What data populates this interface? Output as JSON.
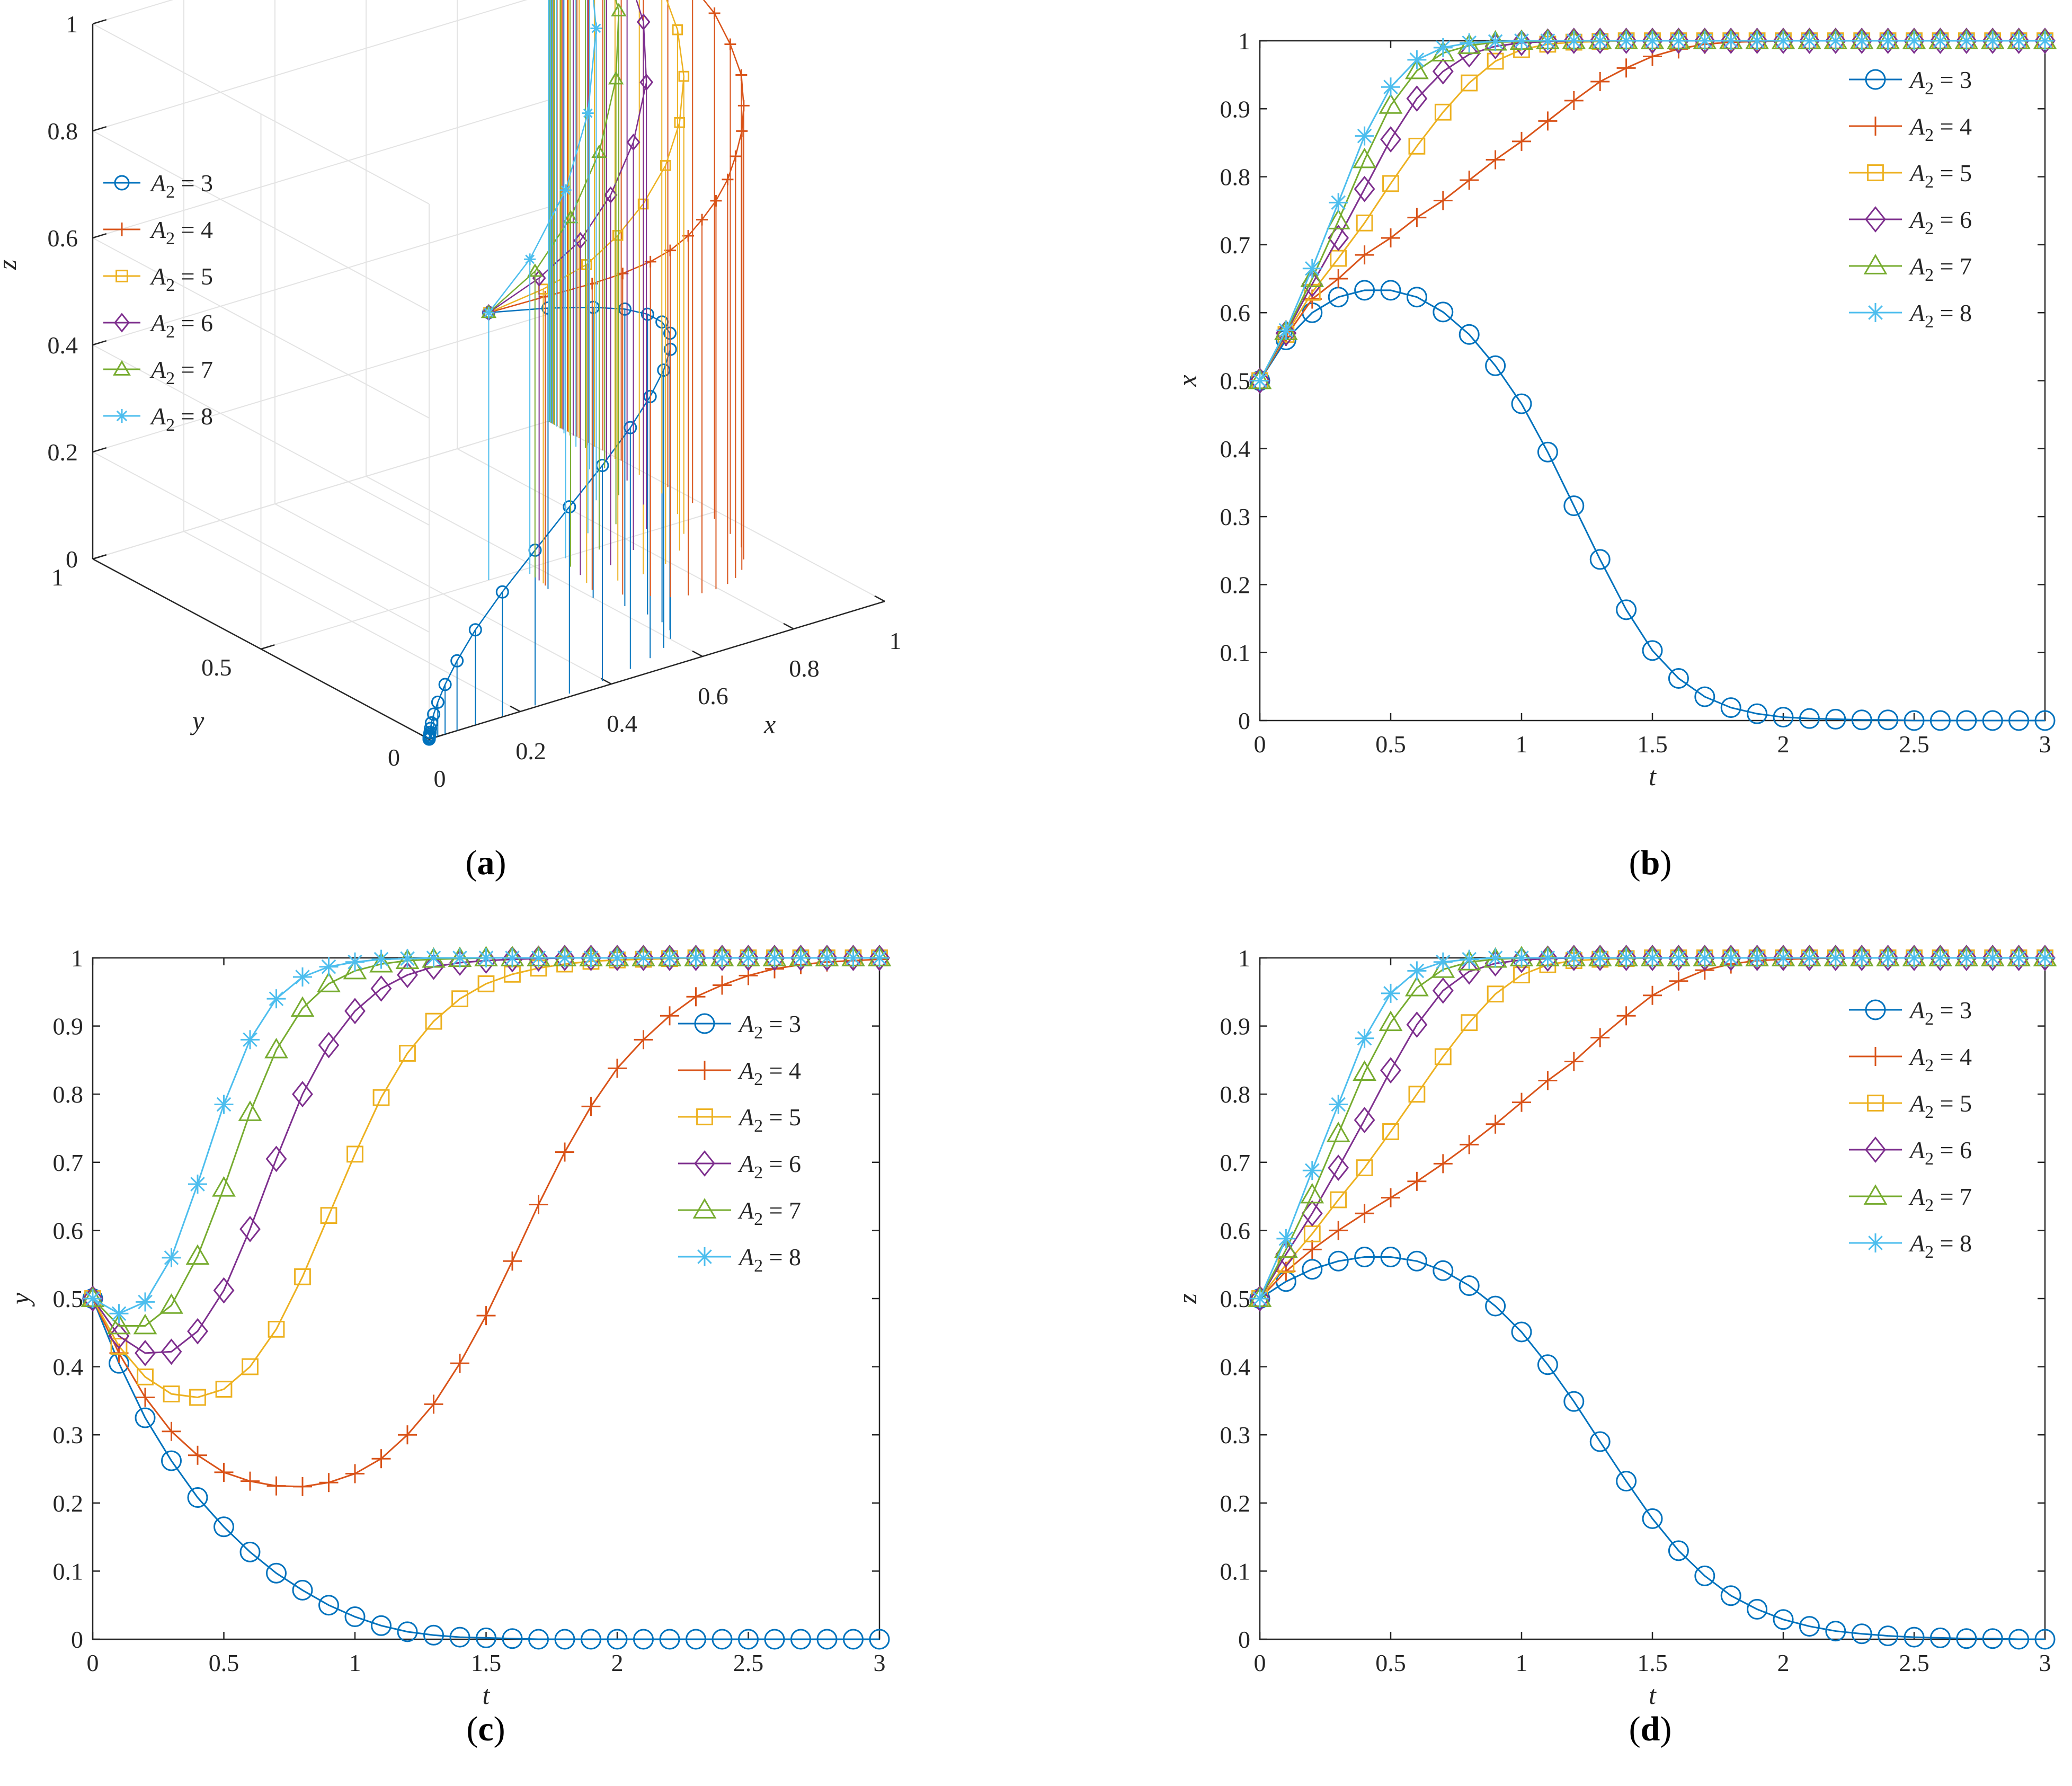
{
  "colors": {
    "A2_3": "#0072BD",
    "A2_4": "#D95319",
    "A2_5": "#EDB120",
    "A2_6": "#7E2F8E",
    "A2_7": "#77AC30",
    "A2_8": "#4DBEEE"
  },
  "chart_data": [
    {
      "panel": "a",
      "type": "line3d",
      "caption": "(a)",
      "caption_letter": "a",
      "xlabel": "x",
      "ylabel": "y",
      "zlabel": "z",
      "xticks": [
        "0",
        "0.2",
        "0.4",
        "0.6",
        "0.8",
        "1"
      ],
      "yticks": [
        "0",
        "0.5",
        "1"
      ],
      "zticks": [
        "0",
        "0.2",
        "0.4",
        "0.6",
        "0.8",
        "1"
      ],
      "legend_position": "top-left",
      "note": "trajectories (x(t), y(t), z(t)) for t in [0,3] with drop lines to z=0",
      "series": [
        {
          "name": "A2 = 3",
          "key": "A2_3",
          "marker": "circle"
        },
        {
          "name": "A2 = 4",
          "key": "A2_4",
          "marker": "plus"
        },
        {
          "name": "A2 = 5",
          "key": "A2_5",
          "marker": "square"
        },
        {
          "name": "A2 = 6",
          "key": "A2_6",
          "marker": "diamond"
        },
        {
          "name": "A2 = 7",
          "key": "A2_7",
          "marker": "triangle"
        },
        {
          "name": "A2 = 8",
          "key": "A2_8",
          "marker": "star"
        }
      ]
    },
    {
      "panel": "b",
      "type": "line",
      "caption": "(b)",
      "caption_letter": "b",
      "xlabel": "t",
      "ylabel": "x",
      "xlim": [
        0,
        3
      ],
      "ylim": [
        0,
        1
      ],
      "xticks": [
        "0",
        "0.5",
        "1",
        "1.5",
        "2",
        "2.5",
        "3"
      ],
      "yticks": [
        "0",
        "0.1",
        "0.2",
        "0.3",
        "0.4",
        "0.5",
        "0.6",
        "0.7",
        "0.8",
        "0.9",
        "1"
      ],
      "legend_position": "top-right",
      "x": [
        0,
        0.1,
        0.2,
        0.3,
        0.4,
        0.5,
        0.6,
        0.7,
        0.8,
        0.9,
        1,
        1.1,
        1.2,
        1.3,
        1.4,
        1.5,
        1.6,
        1.7,
        1.8,
        1.9,
        2,
        2.1,
        2.2,
        2.3,
        2.4,
        2.5,
        2.6,
        2.7,
        2.8,
        2.9,
        3
      ],
      "series": [
        {
          "name": "A2 = 3",
          "key": "A2_3",
          "marker": "circle",
          "values": [
            0.5,
            0.56,
            0.6,
            0.623,
            0.633,
            0.633,
            0.623,
            0.601,
            0.568,
            0.522,
            0.466,
            0.395,
            0.316,
            0.237,
            0.163,
            0.103,
            0.062,
            0.035,
            0.019,
            0.01,
            0.005,
            0.003,
            0.002,
            0.001,
            0.001,
            0,
            0,
            0,
            0,
            0,
            0
          ]
        },
        {
          "name": "A2 = 4",
          "key": "A2_4",
          "marker": "plus",
          "values": [
            0.5,
            0.565,
            0.62,
            0.65,
            0.685,
            0.71,
            0.74,
            0.765,
            0.795,
            0.825,
            0.852,
            0.882,
            0.912,
            0.94,
            0.96,
            0.977,
            0.988,
            0.995,
            0.998,
            0.999,
            1,
            1,
            1,
            1,
            1,
            1,
            1,
            1,
            1,
            1,
            1
          ]
        },
        {
          "name": "A2 = 5",
          "key": "A2_5",
          "marker": "square",
          "values": [
            0.5,
            0.568,
            0.63,
            0.68,
            0.732,
            0.79,
            0.845,
            0.895,
            0.938,
            0.97,
            0.987,
            0.995,
            0.998,
            0.999,
            1,
            1,
            1,
            1,
            1,
            1,
            1,
            1,
            1,
            1,
            1,
            1,
            1,
            1,
            1,
            1,
            1
          ]
        },
        {
          "name": "A2 = 6",
          "key": "A2_6",
          "marker": "diamond",
          "values": [
            0.5,
            0.57,
            0.642,
            0.71,
            0.782,
            0.855,
            0.915,
            0.955,
            0.98,
            0.992,
            0.997,
            0.999,
            1,
            1,
            1,
            1,
            1,
            1,
            1,
            1,
            1,
            1,
            1,
            1,
            1,
            1,
            1,
            1,
            1,
            1,
            1
          ]
        },
        {
          "name": "A2 = 7",
          "key": "A2_7",
          "marker": "triangle",
          "values": [
            0.5,
            0.572,
            0.65,
            0.735,
            0.825,
            0.905,
            0.956,
            0.982,
            0.993,
            0.998,
            0.999,
            1,
            1,
            1,
            1,
            1,
            1,
            1,
            1,
            1,
            1,
            1,
            1,
            1,
            1,
            1,
            1,
            1,
            1,
            1,
            1
          ]
        },
        {
          "name": "A2 = 8",
          "key": "A2_8",
          "marker": "star",
          "values": [
            0.5,
            0.574,
            0.665,
            0.762,
            0.86,
            0.932,
            0.972,
            0.99,
            0.997,
            0.999,
            1,
            1,
            1,
            1,
            1,
            1,
            1,
            1,
            1,
            1,
            1,
            1,
            1,
            1,
            1,
            1,
            1,
            1,
            1,
            1,
            1
          ]
        }
      ]
    },
    {
      "panel": "c",
      "type": "line",
      "caption": "(c)",
      "caption_letter": "c",
      "xlabel": "t",
      "ylabel": "y",
      "xlim": [
        0,
        3
      ],
      "ylim": [
        0,
        1
      ],
      "xticks": [
        "0",
        "0.5",
        "1",
        "1.5",
        "2",
        "2.5",
        "3"
      ],
      "yticks": [
        "0",
        "0.1",
        "0.2",
        "0.3",
        "0.4",
        "0.5",
        "0.6",
        "0.7",
        "0.8",
        "0.9",
        "1"
      ],
      "legend_position": "right",
      "x": [
        0,
        0.1,
        0.2,
        0.3,
        0.4,
        0.5,
        0.6,
        0.7,
        0.8,
        0.9,
        1,
        1.1,
        1.2,
        1.3,
        1.4,
        1.5,
        1.6,
        1.7,
        1.8,
        1.9,
        2,
        2.1,
        2.2,
        2.3,
        2.4,
        2.5,
        2.6,
        2.7,
        2.8,
        2.9,
        3
      ],
      "series": [
        {
          "name": "A2 = 3",
          "key": "A2_3",
          "marker": "circle",
          "values": [
            0.5,
            0.405,
            0.325,
            0.262,
            0.208,
            0.165,
            0.128,
            0.097,
            0.072,
            0.05,
            0.033,
            0.02,
            0.011,
            0.006,
            0.003,
            0.002,
            0.001,
            0,
            0,
            0,
            0,
            0,
            0,
            0,
            0,
            0,
            0,
            0,
            0,
            0,
            0
          ]
        },
        {
          "name": "A2 = 4",
          "key": "A2_4",
          "marker": "plus",
          "values": [
            0.5,
            0.42,
            0.355,
            0.305,
            0.27,
            0.245,
            0.232,
            0.225,
            0.224,
            0.23,
            0.243,
            0.265,
            0.3,
            0.345,
            0.405,
            0.475,
            0.555,
            0.638,
            0.715,
            0.782,
            0.838,
            0.88,
            0.915,
            0.943,
            0.96,
            0.974,
            0.984,
            0.99,
            0.994,
            0.996,
            0.998
          ]
        },
        {
          "name": "A2 = 5",
          "key": "A2_5",
          "marker": "square",
          "values": [
            0.5,
            0.43,
            0.385,
            0.36,
            0.355,
            0.367,
            0.4,
            0.455,
            0.532,
            0.622,
            0.712,
            0.795,
            0.86,
            0.907,
            0.94,
            0.962,
            0.976,
            0.985,
            0.991,
            0.995,
            0.997,
            0.998,
            0.999,
            1,
            1,
            1,
            1,
            1,
            1,
            1,
            1
          ]
        },
        {
          "name": "A2 = 6",
          "key": "A2_6",
          "marker": "diamond",
          "values": [
            0.5,
            0.445,
            0.42,
            0.422,
            0.452,
            0.512,
            0.602,
            0.705,
            0.8,
            0.872,
            0.922,
            0.955,
            0.975,
            0.987,
            0.993,
            0.996,
            0.998,
            0.999,
            1,
            1,
            1,
            1,
            1,
            1,
            1,
            1,
            1,
            1,
            1,
            1,
            1
          ]
        },
        {
          "name": "A2 = 7",
          "key": "A2_7",
          "marker": "triangle",
          "values": [
            0.5,
            0.46,
            0.46,
            0.49,
            0.562,
            0.662,
            0.773,
            0.865,
            0.926,
            0.962,
            0.981,
            0.991,
            0.996,
            0.998,
            0.999,
            1,
            1,
            1,
            1,
            1,
            1,
            1,
            1,
            1,
            1,
            1,
            1,
            1,
            1,
            1,
            1
          ]
        },
        {
          "name": "A2 = 8",
          "key": "A2_8",
          "marker": "star",
          "values": [
            0.5,
            0.478,
            0.495,
            0.56,
            0.668,
            0.785,
            0.88,
            0.94,
            0.972,
            0.987,
            0.994,
            0.998,
            0.999,
            1,
            1,
            1,
            1,
            1,
            1,
            1,
            1,
            1,
            1,
            1,
            1,
            1,
            1,
            1,
            1,
            1,
            1
          ]
        }
      ]
    },
    {
      "panel": "d",
      "type": "line",
      "caption": "(d)",
      "caption_letter": "d",
      "xlabel": "t",
      "ylabel": "z",
      "xlim": [
        0,
        3
      ],
      "ylim": [
        0,
        1
      ],
      "xticks": [
        "0",
        "0.5",
        "1",
        "1.5",
        "2",
        "2.5",
        "3"
      ],
      "yticks": [
        "0",
        "0.1",
        "0.2",
        "0.3",
        "0.4",
        "0.5",
        "0.6",
        "0.7",
        "0.8",
        "0.9",
        "1"
      ],
      "legend_position": "top-right",
      "x": [
        0,
        0.1,
        0.2,
        0.3,
        0.4,
        0.5,
        0.6,
        0.7,
        0.8,
        0.9,
        1,
        1.1,
        1.2,
        1.3,
        1.4,
        1.5,
        1.6,
        1.7,
        1.8,
        1.9,
        2,
        2.1,
        2.2,
        2.3,
        2.4,
        2.5,
        2.6,
        2.7,
        2.8,
        2.9,
        3
      ],
      "series": [
        {
          "name": "A2 = 3",
          "key": "A2_3",
          "marker": "circle",
          "values": [
            0.5,
            0.525,
            0.543,
            0.555,
            0.561,
            0.561,
            0.555,
            0.541,
            0.519,
            0.489,
            0.451,
            0.403,
            0.349,
            0.29,
            0.232,
            0.177,
            0.13,
            0.093,
            0.064,
            0.044,
            0.029,
            0.019,
            0.012,
            0.008,
            0.005,
            0.003,
            0.002,
            0.001,
            0.001,
            0,
            0
          ]
        },
        {
          "name": "A2 = 4",
          "key": "A2_4",
          "marker": "plus",
          "values": [
            0.5,
            0.54,
            0.572,
            0.6,
            0.625,
            0.648,
            0.672,
            0.698,
            0.726,
            0.756,
            0.788,
            0.82,
            0.848,
            0.883,
            0.915,
            0.945,
            0.966,
            0.982,
            0.991,
            0.996,
            0.998,
            0.999,
            1,
            1,
            1,
            1,
            1,
            1,
            1,
            1,
            1
          ]
        },
        {
          "name": "A2 = 5",
          "key": "A2_5",
          "marker": "square",
          "values": [
            0.5,
            0.55,
            0.595,
            0.645,
            0.692,
            0.745,
            0.8,
            0.855,
            0.905,
            0.947,
            0.975,
            0.99,
            0.996,
            0.998,
            0.999,
            1,
            1,
            1,
            1,
            1,
            1,
            1,
            1,
            1,
            1,
            1,
            1,
            1,
            1,
            1,
            1
          ]
        },
        {
          "name": "A2 = 6",
          "key": "A2_6",
          "marker": "diamond",
          "values": [
            0.5,
            0.565,
            0.625,
            0.692,
            0.762,
            0.835,
            0.902,
            0.952,
            0.98,
            0.992,
            0.997,
            0.999,
            1,
            1,
            1,
            1,
            1,
            1,
            1,
            1,
            1,
            1,
            1,
            1,
            1,
            1,
            1,
            1,
            1,
            1,
            1
          ]
        },
        {
          "name": "A2 = 7",
          "key": "A2_7",
          "marker": "triangle",
          "values": [
            0.5,
            0.572,
            0.652,
            0.742,
            0.832,
            0.905,
            0.956,
            0.983,
            0.994,
            0.998,
            1,
            1,
            1,
            1,
            1,
            1,
            1,
            1,
            1,
            1,
            1,
            1,
            1,
            1,
            1,
            1,
            1,
            1,
            1,
            1,
            1
          ]
        },
        {
          "name": "A2 = 8",
          "key": "A2_8",
          "marker": "star",
          "values": [
            0.5,
            0.588,
            0.688,
            0.785,
            0.882,
            0.948,
            0.981,
            0.994,
            0.998,
            1,
            1,
            1,
            1,
            1,
            1,
            1,
            1,
            1,
            1,
            1,
            1,
            1,
            1,
            1,
            1,
            1,
            1,
            1,
            1,
            1,
            1
          ]
        }
      ]
    }
  ]
}
